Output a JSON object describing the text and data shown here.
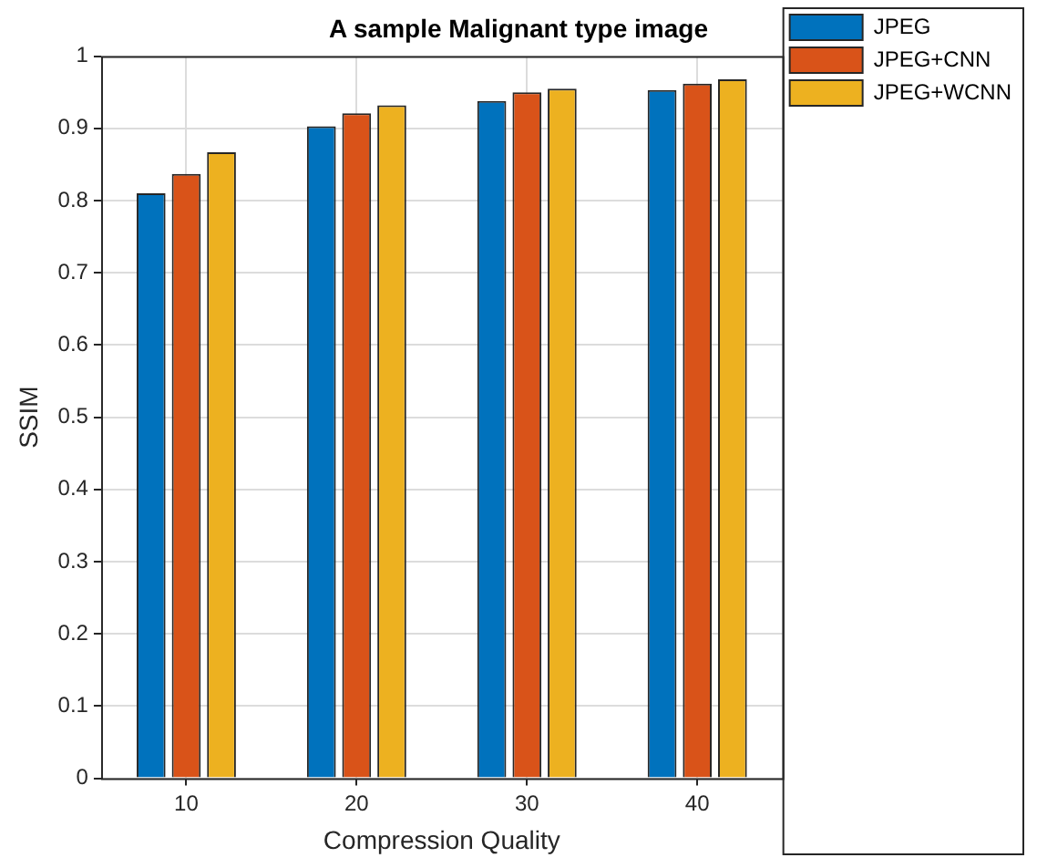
{
  "chart_data": {
    "type": "bar",
    "title": "A sample Malignant type image",
    "xlabel": "Compression Quality",
    "ylabel": "SSIM",
    "categories": [
      "10",
      "20",
      "30",
      "40"
    ],
    "series": [
      {
        "name": "JPEG",
        "color": "#0072bd",
        "values": [
          0.81,
          0.903,
          0.938,
          0.953
        ]
      },
      {
        "name": "JPEG+CNN",
        "color": "#d95319",
        "values": [
          0.837,
          0.921,
          0.95,
          0.962
        ]
      },
      {
        "name": "JPEG+WCNN",
        "color": "#edb120",
        "values": [
          0.867,
          0.932,
          0.955,
          0.968
        ]
      }
    ],
    "ylim": [
      0,
      1
    ],
    "yticks": [
      0,
      0.1,
      0.2,
      0.3,
      0.4,
      0.5,
      0.6,
      0.7,
      0.8,
      0.9,
      1
    ],
    "grid": true,
    "legend": "top right"
  }
}
